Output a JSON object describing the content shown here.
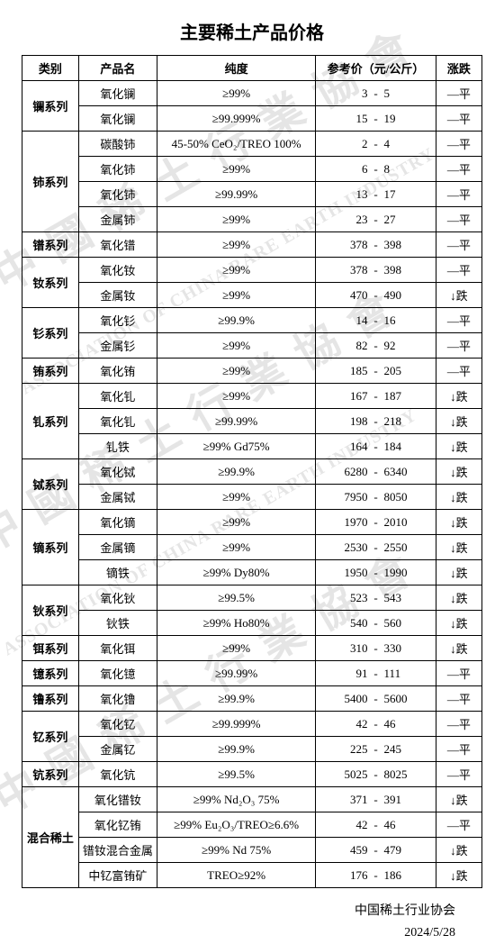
{
  "title": "主要稀土产品价格",
  "headers": {
    "category": "类别",
    "product": "产品名",
    "purity": "纯度",
    "price": "参考价（元/公斤）",
    "trend": "涨跌"
  },
  "trend_labels": {
    "flat": "—平",
    "down": "↓跌"
  },
  "footer": {
    "org": "中国稀土行业协会",
    "date": "2024/5/28"
  },
  "watermark_texts": [
    "中 國 稀 土 行 業 協 會",
    "ASSOCIATION OF CHINA RARE EARTH INDUSTRY"
  ],
  "groups": [
    {
      "category": "镧系列",
      "rows": [
        {
          "product": "氧化镧",
          "purity": "≥99%",
          "p1": "3",
          "p2": "5",
          "trend": "flat"
        },
        {
          "product": "氧化镧",
          "purity": "≥99.999%",
          "p1": "15",
          "p2": "19",
          "trend": "flat"
        }
      ]
    },
    {
      "category": "铈系列",
      "rows": [
        {
          "product": "碳酸铈",
          "purity": "45-50% CeO₂/TREO 100%",
          "p1": "2",
          "p2": "4",
          "trend": "flat"
        },
        {
          "product": "氧化铈",
          "purity": "≥99%",
          "p1": "6",
          "p2": "8",
          "trend": "flat"
        },
        {
          "product": "氧化铈",
          "purity": "≥99.99%",
          "p1": "13",
          "p2": "17",
          "trend": "flat"
        },
        {
          "product": "金属铈",
          "purity": "≥99%",
          "p1": "23",
          "p2": "27",
          "trend": "flat"
        }
      ]
    },
    {
      "category": "镨系列",
      "rows": [
        {
          "product": "氧化镨",
          "purity": "≥99%",
          "p1": "378",
          "p2": "398",
          "trend": "flat"
        }
      ]
    },
    {
      "category": "钕系列",
      "rows": [
        {
          "product": "氧化钕",
          "purity": "≥99%",
          "p1": "378",
          "p2": "398",
          "trend": "flat"
        },
        {
          "product": "金属钕",
          "purity": "≥99%",
          "p1": "470",
          "p2": "490",
          "trend": "down"
        }
      ]
    },
    {
      "category": "钐系列",
      "rows": [
        {
          "product": "氧化钐",
          "purity": "≥99.9%",
          "p1": "14",
          "p2": "16",
          "trend": "flat"
        },
        {
          "product": "金属钐",
          "purity": "≥99%",
          "p1": "82",
          "p2": "92",
          "trend": "flat"
        }
      ]
    },
    {
      "category": "铕系列",
      "rows": [
        {
          "product": "氧化铕",
          "purity": "≥99%",
          "p1": "185",
          "p2": "205",
          "trend": "flat"
        }
      ]
    },
    {
      "category": "钆系列",
      "rows": [
        {
          "product": "氧化钆",
          "purity": "≥99%",
          "p1": "167",
          "p2": "187",
          "trend": "down"
        },
        {
          "product": "氧化钆",
          "purity": "≥99.99%",
          "p1": "198",
          "p2": "218",
          "trend": "down"
        },
        {
          "product": "钆铁",
          "purity": "≥99% Gd75%",
          "p1": "164",
          "p2": "184",
          "trend": "down"
        }
      ]
    },
    {
      "category": "铽系列",
      "rows": [
        {
          "product": "氧化铽",
          "purity": "≥99.9%",
          "p1": "6280",
          "p2": "6340",
          "trend": "down"
        },
        {
          "product": "金属铽",
          "purity": "≥99%",
          "p1": "7950",
          "p2": "8050",
          "trend": "down"
        }
      ]
    },
    {
      "category": "镝系列",
      "rows": [
        {
          "product": "氧化镝",
          "purity": "≥99%",
          "p1": "1970",
          "p2": "2010",
          "trend": "down"
        },
        {
          "product": "金属镝",
          "purity": "≥99%",
          "p1": "2530",
          "p2": "2550",
          "trend": "down"
        },
        {
          "product": "镝铁",
          "purity": "≥99% Dy80%",
          "p1": "1950",
          "p2": "1990",
          "trend": "down"
        }
      ]
    },
    {
      "category": "钬系列",
      "rows": [
        {
          "product": "氧化钬",
          "purity": "≥99.5%",
          "p1": "523",
          "p2": "543",
          "trend": "down"
        },
        {
          "product": "钬铁",
          "purity": "≥99% Ho80%",
          "p1": "540",
          "p2": "560",
          "trend": "down"
        }
      ]
    },
    {
      "category": "铒系列",
      "rows": [
        {
          "product": "氧化铒",
          "purity": "≥99%",
          "p1": "310",
          "p2": "330",
          "trend": "down"
        }
      ]
    },
    {
      "category": "镱系列",
      "rows": [
        {
          "product": "氧化镱",
          "purity": "≥99.99%",
          "p1": "91",
          "p2": "111",
          "trend": "flat"
        }
      ]
    },
    {
      "category": "镥系列",
      "rows": [
        {
          "product": "氧化镥",
          "purity": "≥99.9%",
          "p1": "5400",
          "p2": "5600",
          "trend": "flat"
        }
      ]
    },
    {
      "category": "钇系列",
      "rows": [
        {
          "product": "氧化钇",
          "purity": "≥99.999%",
          "p1": "42",
          "p2": "46",
          "trend": "flat"
        },
        {
          "product": "金属钇",
          "purity": "≥99.9%",
          "p1": "225",
          "p2": "245",
          "trend": "flat"
        }
      ]
    },
    {
      "category": "钪系列",
      "rows": [
        {
          "product": "氧化钪",
          "purity": "≥99.5%",
          "p1": "5025",
          "p2": "8025",
          "trend": "flat"
        }
      ]
    },
    {
      "category": "混合稀土",
      "rows": [
        {
          "product": "氧化镨钕",
          "purity": "≥99%  Nd₂O₃  75%",
          "p1": "371",
          "p2": "391",
          "trend": "down"
        },
        {
          "product": "氧化钇铕",
          "purity": "≥99% Eu₂O₃/TREO≥6.6%",
          "p1": "42",
          "p2": "46",
          "trend": "flat"
        },
        {
          "product": "镨钕混合金属",
          "purity": "≥99% Nd 75%",
          "p1": "459",
          "p2": "479",
          "trend": "down"
        },
        {
          "product": "中钇富铕矿",
          "purity": "TREO≥92%",
          "p1": "176",
          "p2": "186",
          "trend": "down"
        }
      ]
    }
  ]
}
